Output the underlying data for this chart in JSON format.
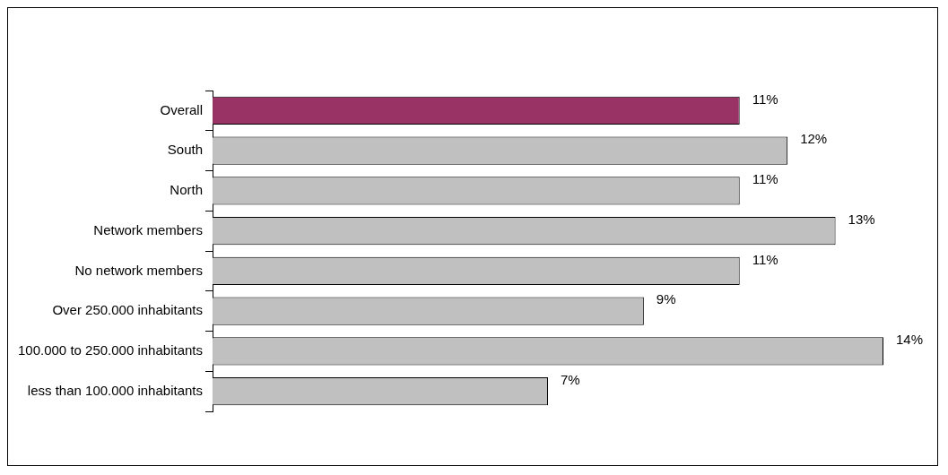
{
  "chart_data": {
    "type": "bar",
    "orientation": "horizontal",
    "categories": [
      "Overall",
      "South",
      "North",
      "Network members",
      "No network members",
      "Over 250.000 inhabitants",
      "100.000 to 250.000 inhabitants",
      "less than 100.000 inhabitants"
    ],
    "values": [
      11,
      12,
      11,
      13,
      11,
      9,
      14,
      7
    ],
    "colors": [
      "#993366",
      "#c0c0c0",
      "#c0c0c0",
      "#c0c0c0",
      "#c0c0c0",
      "#c0c0c0",
      "#c0c0c0",
      "#c0c0c0"
    ],
    "value_labels": [
      "11%",
      "12%",
      "11%",
      "13%",
      "11%",
      "9%",
      "14%",
      "7%"
    ],
    "legend": false
  }
}
